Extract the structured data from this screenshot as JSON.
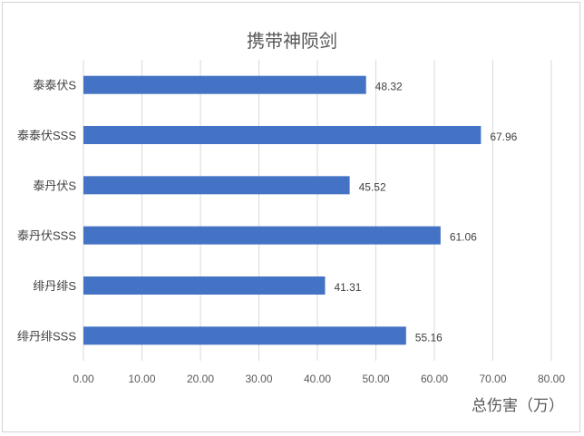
{
  "chart_data": {
    "type": "bar",
    "orientation": "horizontal",
    "title": "携带神陨剑",
    "xlabel": "总伤害（万）",
    "ylabel": "",
    "categories": [
      "泰泰伏S",
      "泰泰伏SSS",
      "泰丹伏S",
      "泰丹伏SSS",
      "绯丹绯S",
      "绯丹绯SSS"
    ],
    "values": [
      48.32,
      67.96,
      45.52,
      61.06,
      41.31,
      55.16
    ],
    "value_labels": [
      "48.32",
      "67.96",
      "45.52",
      "61.06",
      "41.31",
      "55.16"
    ],
    "xlim": [
      0,
      80
    ],
    "xticks": [
      "0.00",
      "10.00",
      "20.00",
      "30.00",
      "40.00",
      "50.00",
      "60.00",
      "70.00",
      "80.00"
    ],
    "grid": "vertical",
    "bar_color": "#4472c4",
    "grid_color": "#d9d9d9"
  }
}
